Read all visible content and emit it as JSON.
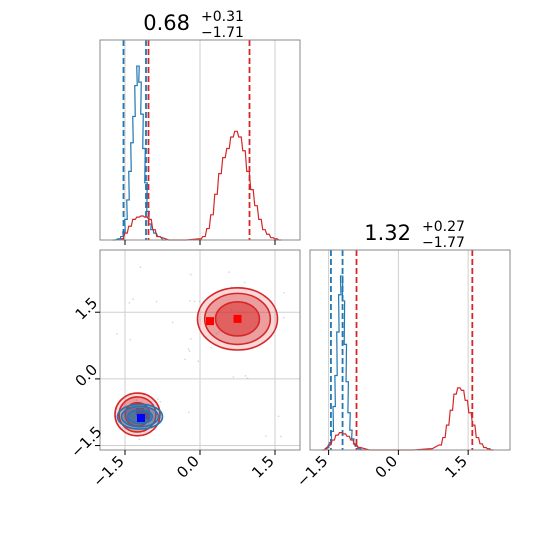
{
  "chart_data": [
    {
      "type": "histogram",
      "panel": "marginal-x",
      "title": {
        "median": "0.68",
        "upper": "+0.31",
        "lower": "−1.71"
      },
      "xlim": [
        -2.0,
        2.0
      ],
      "bin_width": 0.05,
      "grid": true,
      "series": [
        {
          "color": "#1f77b4",
          "x": [
            -1.72,
            -1.62,
            -1.56,
            -1.52,
            -1.48,
            -1.44,
            -1.4,
            -1.36,
            -1.32,
            -1.28,
            -1.24,
            -1.2,
            -1.16,
            -1.12,
            -1.08,
            -1.04,
            -1.0,
            -0.96,
            -0.9,
            -0.82,
            -0.72
          ],
          "counts": [
            0,
            1,
            3,
            7,
            18,
            35,
            60,
            85,
            108,
            135,
            152,
            138,
            110,
            80,
            50,
            25,
            14,
            9,
            6,
            3,
            0
          ],
          "quantiles": [
            -1.53,
            -1.08
          ]
        },
        {
          "color": "#d62728",
          "x": [
            -1.56,
            -1.48,
            -1.4,
            -1.32,
            -1.24,
            -1.16,
            -1.08,
            -1.0,
            -0.92,
            -0.84,
            -0.6,
            -0.3,
            0.0,
            0.08,
            0.16,
            0.24,
            0.32,
            0.4,
            0.48,
            0.56,
            0.64,
            0.72,
            0.8,
            0.88,
            0.96,
            1.04,
            1.12,
            1.2,
            1.28,
            1.36,
            1.44,
            1.52,
            1.6
          ],
          "counts": [
            1,
            6,
            12,
            18,
            20,
            21,
            20,
            18,
            9,
            3,
            0,
            0,
            1,
            3,
            10,
            22,
            40,
            58,
            72,
            80,
            90,
            95,
            90,
            78,
            60,
            44,
            30,
            18,
            9,
            5,
            2,
            1,
            0
          ],
          "quantiles": [
            -1.03,
            0.99
          ]
        }
      ]
    },
    {
      "type": "histogram",
      "panel": "marginal-y",
      "title": {
        "median": "1.32",
        "upper": "+0.27",
        "lower": "−1.77"
      },
      "xlim": [
        -1.9,
        2.4
      ],
      "bin_width": 0.05,
      "grid": true,
      "series": [
        {
          "color": "#1f77b4",
          "x": [
            -1.62,
            -1.52,
            -1.46,
            -1.42,
            -1.38,
            -1.34,
            -1.3,
            -1.26,
            -1.22,
            -1.18,
            -1.14,
            -1.1,
            -1.06,
            -1.02,
            -0.98,
            -0.94,
            -0.9,
            -0.84,
            -0.76
          ],
          "counts": [
            0,
            2,
            6,
            15,
            35,
            60,
            95,
            125,
            140,
            120,
            85,
            55,
            30,
            16,
            9,
            5,
            3,
            1,
            0
          ],
          "quantiles": [
            -1.45,
            -1.2
          ]
        },
        {
          "color": "#d62728",
          "x": [
            -1.56,
            -1.48,
            -1.4,
            -1.32,
            -1.24,
            -1.16,
            -1.08,
            -1.0,
            -0.92,
            -0.84,
            -0.6,
            -0.2,
            0.3,
            0.7,
            0.9,
            0.98,
            1.06,
            1.14,
            1.22,
            1.3,
            1.38,
            1.46,
            1.54,
            1.62,
            1.7,
            1.78,
            1.86,
            1.94,
            2.02
          ],
          "counts": [
            1,
            4,
            8,
            12,
            14,
            13,
            11,
            8,
            4,
            2,
            0,
            0,
            0,
            1,
            4,
            10,
            20,
            32,
            45,
            50,
            48,
            40,
            30,
            20,
            10,
            5,
            2,
            1,
            0
          ],
          "quantiles": [
            -0.9,
            1.59
          ]
        }
      ]
    },
    {
      "type": "contour",
      "panel": "joint",
      "xlim": [
        -2.0,
        2.0
      ],
      "ylim": [
        -1.6,
        2.9
      ],
      "grid": true,
      "series": [
        {
          "color": "#d62728",
          "contours": [
            {
              "cx": 0.75,
              "cy": 1.35,
              "rx": 0.8,
              "ry": 0.7
            },
            {
              "cx": -1.25,
              "cy": -0.8,
              "rx": 0.45,
              "ry": 0.48
            }
          ],
          "markers": [
            [
              0.2,
              1.3
            ],
            [
              0.75,
              1.35
            ],
            [
              -1.2,
              -0.75
            ],
            [
              -1.1,
              -0.82
            ]
          ],
          "marker_color": "#ff0000"
        },
        {
          "color": "#1f77b4",
          "contours": [
            {
              "cx": -1.2,
              "cy": -0.85,
              "rx": 0.45,
              "ry": 0.28
            }
          ],
          "markers": [
            [
              -1.18,
              -0.88
            ]
          ],
          "marker_color": "#0000ff"
        }
      ]
    }
  ],
  "ticks": {
    "values": [
      "-1.5",
      "0.0",
      "1.5"
    ],
    "labels": [
      "−1.5",
      "0.0",
      "1.5"
    ]
  }
}
